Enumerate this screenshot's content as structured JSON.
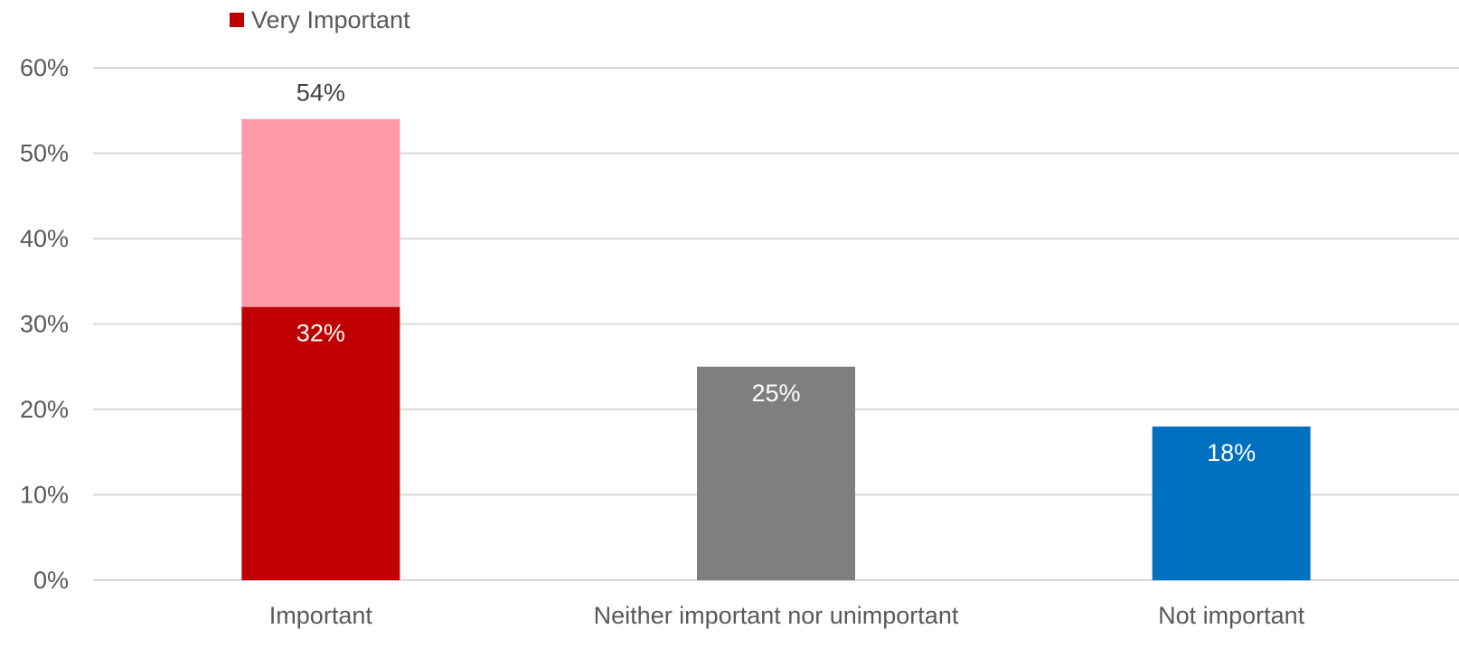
{
  "legend": {
    "label": "Very Important",
    "color": "#c00000"
  },
  "chart_data": {
    "type": "bar",
    "stacked": true,
    "categories": [
      "Important",
      "Neither important nor unimportant",
      "Not important"
    ],
    "series": [
      {
        "name": "Very Important",
        "values": [
          32,
          null,
          null
        ],
        "color": "#c00000",
        "label_color": "#ffffff",
        "labels": [
          "32%",
          null,
          null
        ]
      },
      {
        "values": [
          22,
          25,
          18
        ],
        "colors": [
          "#ff99a8",
          "#7f7f7f",
          "#0070c0"
        ],
        "label_color": "#ffffff",
        "labels": [
          null,
          "25%",
          "18%"
        ]
      }
    ],
    "total_labels": [
      "54%",
      null,
      null
    ],
    "total_label_color": "#404040",
    "ylim": [
      0,
      60
    ],
    "yticks": [
      0,
      10,
      20,
      30,
      40,
      50,
      60
    ],
    "ytick_labels": [
      "0%",
      "10%",
      "20%",
      "30%",
      "40%",
      "50%",
      "60%"
    ],
    "grid": true,
    "grid_color": "#d9d9d9",
    "legend_position": "top-left"
  }
}
